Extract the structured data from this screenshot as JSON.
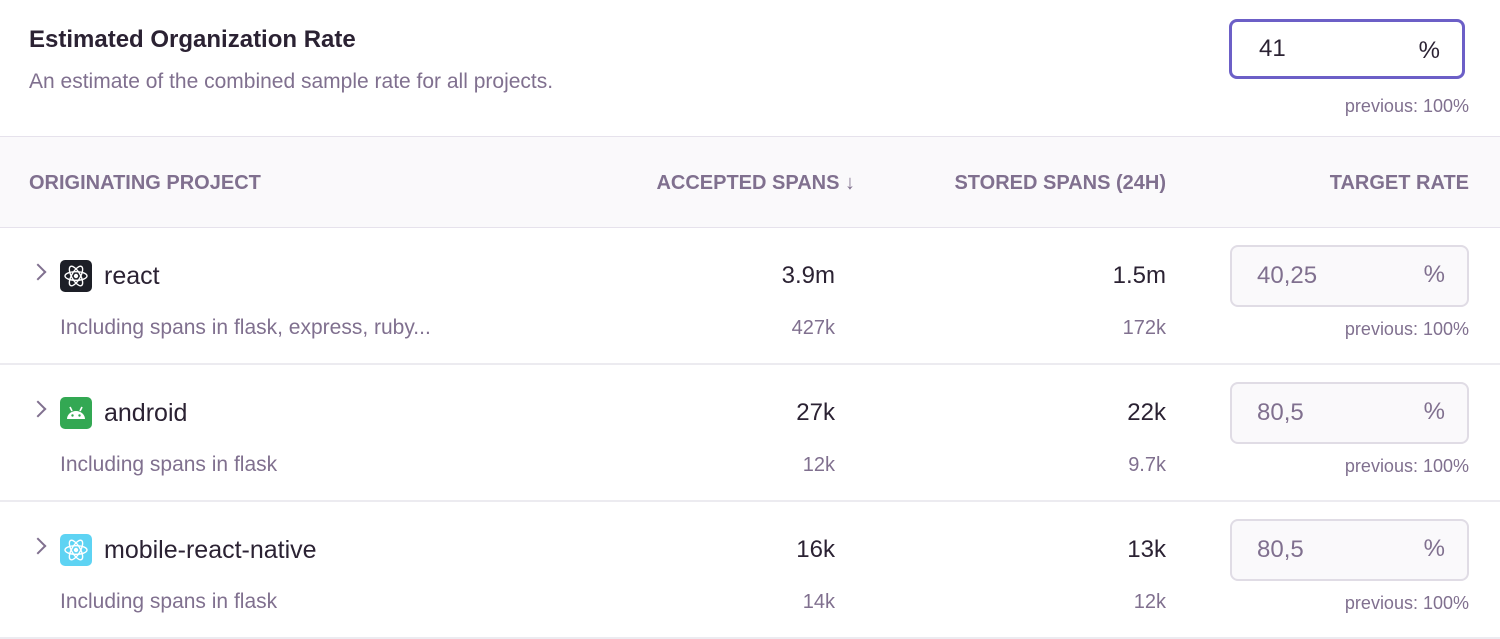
{
  "org": {
    "title": "Estimated Organization Rate",
    "description": "An estimate of the combined sample rate for all projects.",
    "value": "41",
    "unit": "%",
    "previous": "previous: 100%"
  },
  "columns": {
    "project": "ORIGINATING PROJECT",
    "accepted": "ACCEPTED SPANS ↓",
    "stored": "STORED SPANS (24H)",
    "target": "TARGET RATE"
  },
  "rows": [
    {
      "name": "react",
      "icon": "react-icon",
      "icon_bg": "#1d1f27",
      "sub": "Including spans in flask, express, ruby...",
      "accepted": "3.9m",
      "stored": "1.5m",
      "accepted_sub": "427k",
      "stored_sub": "172k",
      "rate": "40,25",
      "unit": "%",
      "previous": "previous: 100%"
    },
    {
      "name": "android",
      "icon": "android-icon",
      "icon_bg": "#33a853",
      "sub": "Including spans in flask",
      "accepted": "27k",
      "stored": "22k",
      "accepted_sub": "12k",
      "stored_sub": "9.7k",
      "rate": "80,5",
      "unit": "%",
      "previous": "previous: 100%"
    },
    {
      "name": "mobile-react-native",
      "icon": "react-native-icon",
      "icon_bg": "#5ed3f3",
      "sub": "Including spans in flask",
      "accepted": "16k",
      "stored": "13k",
      "accepted_sub": "14k",
      "stored_sub": "12k",
      "rate": "80,5",
      "unit": "%",
      "previous": "previous: 100%"
    }
  ]
}
